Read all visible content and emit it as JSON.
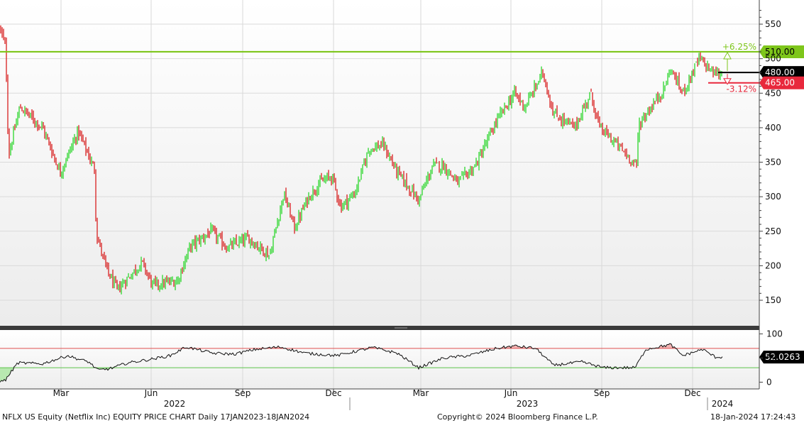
{
  "chart_data": {
    "type": "candlestick",
    "ticker_line": "NFLX US Equity (Netflix Inc) EQUITY PRICE CHART  Daily 17JAN2023-18JAN2024",
    "copyright": "Copyright© 2024 Bloomberg Finance L.P.",
    "timestamp": "18-Jan-2024 17:24:43",
    "price_axis": {
      "ticks": [
        150,
        200,
        250,
        300,
        350,
        400,
        450,
        500,
        550
      ],
      "ylim": [
        112,
        585
      ]
    },
    "oscillator_axis": {
      "ticks": [
        0,
        50,
        100
      ],
      "ylim": [
        -14,
        108
      ],
      "upper_band": 70,
      "lower_band": 30
    },
    "month_labels": [
      "Mar",
      "Jun",
      "Sep",
      "Dec",
      "Mar",
      "Jun",
      "Sep",
      "Dec"
    ],
    "year_labels": [
      "2022",
      "2023",
      "2024"
    ],
    "levels": {
      "upper": {
        "value": 510,
        "label": "510.00",
        "pct": "+6.25%",
        "color": "#7ec61b"
      },
      "current": {
        "value": 480,
        "label": "480.00",
        "color": "#000000"
      },
      "lower": {
        "value": 465,
        "label": "465.00",
        "pct": "-3.12%",
        "color": "#e8283c"
      }
    },
    "oscillator_last": {
      "value": 52.0263,
      "label": "52.0263"
    },
    "price_series_anchors": [
      [
        0,
        545
      ],
      [
        8,
        515
      ],
      [
        12,
        360
      ],
      [
        28,
        430
      ],
      [
        60,
        400
      ],
      [
        85,
        335
      ],
      [
        110,
        395
      ],
      [
        133,
        340
      ],
      [
        136,
        245
      ],
      [
        150,
        195
      ],
      [
        165,
        165
      ],
      [
        200,
        205
      ],
      [
        215,
        172
      ],
      [
        250,
        178
      ],
      [
        268,
        228
      ],
      [
        298,
        250
      ],
      [
        320,
        226
      ],
      [
        350,
        240
      ],
      [
        380,
        215
      ],
      [
        390,
        260
      ],
      [
        400,
        305
      ],
      [
        415,
        255
      ],
      [
        435,
        300
      ],
      [
        450,
        320
      ],
      [
        468,
        330
      ],
      [
        480,
        285
      ],
      [
        500,
        305
      ],
      [
        520,
        370
      ],
      [
        540,
        375
      ],
      [
        560,
        335
      ],
      [
        590,
        295
      ],
      [
        610,
        345
      ],
      [
        625,
        345
      ],
      [
        645,
        320
      ],
      [
        670,
        345
      ],
      [
        700,
        410
      ],
      [
        725,
        450
      ],
      [
        740,
        430
      ],
      [
        765,
        480
      ],
      [
        780,
        420
      ],
      [
        810,
        400
      ],
      [
        832,
        450
      ],
      [
        845,
        400
      ],
      [
        870,
        375
      ],
      [
        897,
        345
      ],
      [
        900,
        405
      ],
      [
        935,
        455
      ],
      [
        945,
        485
      ],
      [
        962,
        450
      ],
      [
        985,
        500
      ],
      [
        1005,
        480
      ],
      [
        1018,
        477
      ]
    ],
    "oscillator_series_anchors": [
      [
        0,
        0
      ],
      [
        8,
        5
      ],
      [
        15,
        20
      ],
      [
        25,
        40
      ],
      [
        60,
        38
      ],
      [
        95,
        55
      ],
      [
        110,
        48
      ],
      [
        125,
        42
      ],
      [
        138,
        25
      ],
      [
        155,
        28
      ],
      [
        180,
        40
      ],
      [
        215,
        48
      ],
      [
        240,
        55
      ],
      [
        262,
        73
      ],
      [
        300,
        60
      ],
      [
        330,
        58
      ],
      [
        360,
        68
      ],
      [
        395,
        73
      ],
      [
        430,
        60
      ],
      [
        475,
        55
      ],
      [
        525,
        72
      ],
      [
        560,
        60
      ],
      [
        590,
        30
      ],
      [
        625,
        50
      ],
      [
        660,
        55
      ],
      [
        700,
        70
      ],
      [
        725,
        75
      ],
      [
        755,
        70
      ],
      [
        780,
        35
      ],
      [
        820,
        42
      ],
      [
        850,
        30
      ],
      [
        895,
        30
      ],
      [
        910,
        68
      ],
      [
        945,
        78
      ],
      [
        962,
        55
      ],
      [
        990,
        68
      ],
      [
        1008,
        52
      ],
      [
        1018,
        52
      ]
    ],
    "colors": {
      "up": "#2bd62b",
      "down": "#d81e1e",
      "osc_fill_top": "#f2b4b4",
      "osc_fill_bottom": "#b8e8b0"
    }
  }
}
